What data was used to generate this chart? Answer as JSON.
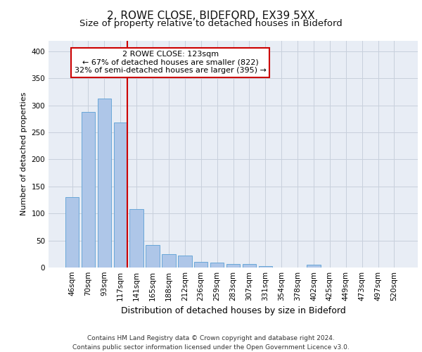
{
  "title1": "2, ROWE CLOSE, BIDEFORD, EX39 5XX",
  "title2": "Size of property relative to detached houses in Bideford",
  "xlabel": "Distribution of detached houses by size in Bideford",
  "ylabel": "Number of detached properties",
  "categories": [
    "46sqm",
    "70sqm",
    "93sqm",
    "117sqm",
    "141sqm",
    "165sqm",
    "188sqm",
    "212sqm",
    "236sqm",
    "259sqm",
    "283sqm",
    "307sqm",
    "331sqm",
    "354sqm",
    "378sqm",
    "402sqm",
    "425sqm",
    "449sqm",
    "473sqm",
    "497sqm",
    "520sqm"
  ],
  "values": [
    130,
    288,
    312,
    268,
    108,
    42,
    25,
    22,
    10,
    9,
    7,
    6,
    3,
    0,
    0,
    5,
    0,
    0,
    0,
    0,
    0
  ],
  "bar_color": "#aec6e8",
  "bar_edge_color": "#5a9fd4",
  "vline_color": "#cc0000",
  "vline_index": 3,
  "annotation_text": "2 ROWE CLOSE: 123sqm\n← 67% of detached houses are smaller (822)\n32% of semi-detached houses are larger (395) →",
  "annotation_box_color": "#ffffff",
  "annotation_box_edge": "#cc0000",
  "ylim": [
    0,
    420
  ],
  "yticks": [
    0,
    50,
    100,
    150,
    200,
    250,
    300,
    350,
    400
  ],
  "grid_color": "#c8d0dc",
  "background_color": "#e8edf5",
  "footer": "Contains HM Land Registry data © Crown copyright and database right 2024.\nContains public sector information licensed under the Open Government Licence v3.0.",
  "title1_fontsize": 11,
  "title2_fontsize": 9.5,
  "xlabel_fontsize": 9,
  "ylabel_fontsize": 8,
  "tick_fontsize": 7.5,
  "annotation_fontsize": 8,
  "footer_fontsize": 6.5
}
